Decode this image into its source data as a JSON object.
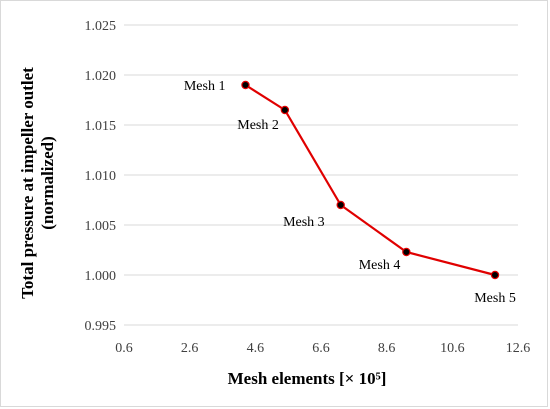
{
  "chart_data": {
    "type": "line",
    "xlabel": "Mesh elements [× 10⁵]",
    "ylabel_line1": "Total pressure at impeller outlet",
    "ylabel_line2": "(normalized)",
    "xlim": [
      0.6,
      12.6
    ],
    "ylim": [
      0.995,
      1.025
    ],
    "x_ticks": [
      "0.6",
      "2.6",
      "4.6",
      "6.6",
      "8.6",
      "10.6",
      "12.6"
    ],
    "y_ticks": [
      "0.995",
      "1.000",
      "1.005",
      "1.010",
      "1.015",
      "1.020",
      "1.025"
    ],
    "grid": "horizontal",
    "legend": "none",
    "series": [
      {
        "color": "#e00000",
        "marker_color": "#000000",
        "points": [
          {
            "x": 4.3,
            "y": 1.019,
            "label": "Mesh 1"
          },
          {
            "x": 5.5,
            "y": 1.0165,
            "label": "Mesh 2"
          },
          {
            "x": 7.2,
            "y": 1.007,
            "label": "Mesh 3"
          },
          {
            "x": 9.2,
            "y": 1.0023,
            "label": "Mesh 4"
          },
          {
            "x": 11.9,
            "y": 1.0,
            "label": "Mesh 5"
          }
        ]
      }
    ]
  }
}
